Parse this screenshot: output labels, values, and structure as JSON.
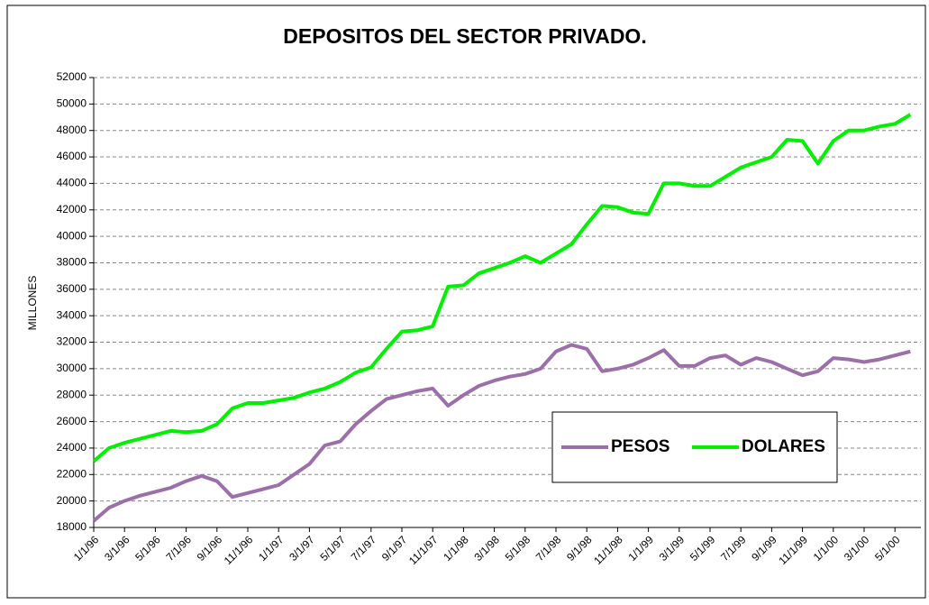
{
  "chart_data": {
    "type": "line",
    "title": "DEPOSITOS DEL SECTOR PRIVADO.",
    "y_label": "MILLONES",
    "x": [
      "1/1/96",
      "2/1/96",
      "3/1/96",
      "4/1/96",
      "5/1/96",
      "6/1/96",
      "7/1/96",
      "8/1/96",
      "9/1/96",
      "10/1/96",
      "11/1/96",
      "12/1/96",
      "1/1/97",
      "2/1/97",
      "3/1/97",
      "4/1/97",
      "5/1/97",
      "6/1/97",
      "7/1/97",
      "8/1/97",
      "9/1/97",
      "10/1/97",
      "11/1/97",
      "12/1/97",
      "1/1/98",
      "2/1/98",
      "3/1/98",
      "4/1/98",
      "5/1/98",
      "6/1/98",
      "7/1/98",
      "8/1/98",
      "9/1/98",
      "10/1/98",
      "11/1/98",
      "12/1/98",
      "1/1/99",
      "2/1/99",
      "3/1/99",
      "4/1/99",
      "5/1/99",
      "6/1/99",
      "7/1/99",
      "8/1/99",
      "9/1/99",
      "10/1/99",
      "11/1/99",
      "12/1/99",
      "1/1/00",
      "2/1/00",
      "3/1/00",
      "4/1/00",
      "5/1/00",
      "6/1/00"
    ],
    "xticks": [
      "1/1/96",
      "3/1/96",
      "5/1/96",
      "7/1/96",
      "9/1/96",
      "11/1/96",
      "1/1/97",
      "3/1/97",
      "5/1/97",
      "7/1/97",
      "9/1/97",
      "11/1/97",
      "1/1/98",
      "3/1/98",
      "5/1/98",
      "7/1/98",
      "9/1/98",
      "11/1/98",
      "1/1/99",
      "3/1/99",
      "5/1/99",
      "7/1/99",
      "9/1/99",
      "11/1/99",
      "1/1/00",
      "3/1/00",
      "5/1/00"
    ],
    "series": [
      {
        "name": "PESOS",
        "color": "#9b6fa8",
        "values": [
          18500,
          19500,
          20000,
          20400,
          20700,
          21000,
          21500,
          21900,
          21500,
          20300,
          20600,
          20900,
          21200,
          22000,
          22800,
          24200,
          24500,
          25800,
          26800,
          27700,
          28000,
          28300,
          28500,
          27200,
          28000,
          28700,
          29100,
          29400,
          29600,
          30000,
          31300,
          31800,
          31500,
          29800,
          30000,
          30300,
          30800,
          31400,
          30200,
          30200,
          30800,
          31000,
          30300,
          30800,
          30500,
          30000,
          29500,
          29800,
          30800,
          30700,
          30500,
          30700,
          31000,
          31300
        ]
      },
      {
        "name": "DOLARES",
        "color": "#00ee00",
        "values": [
          23000,
          24000,
          24400,
          24700,
          25000,
          25300,
          25200,
          25300,
          25800,
          27000,
          27400,
          27400,
          27600,
          27800,
          28200,
          28500,
          29000,
          29700,
          30100,
          31500,
          32800,
          32900,
          33200,
          36200,
          36300,
          37200,
          37600,
          38000,
          38500,
          38000,
          38700,
          39400,
          40900,
          42300,
          42200,
          41800,
          41700,
          44000,
          44000,
          43800,
          43800,
          44500,
          45200,
          45600,
          46000,
          47300,
          47200,
          45500,
          47200,
          48000,
          48000,
          48300,
          48500,
          49200
        ]
      }
    ],
    "ylim": [
      18000,
      52000
    ],
    "yticks": [
      18000,
      20000,
      22000,
      24000,
      26000,
      28000,
      30000,
      32000,
      34000,
      36000,
      38000,
      40000,
      42000,
      44000,
      46000,
      48000,
      50000,
      52000
    ],
    "grid": true,
    "legend": "right"
  }
}
